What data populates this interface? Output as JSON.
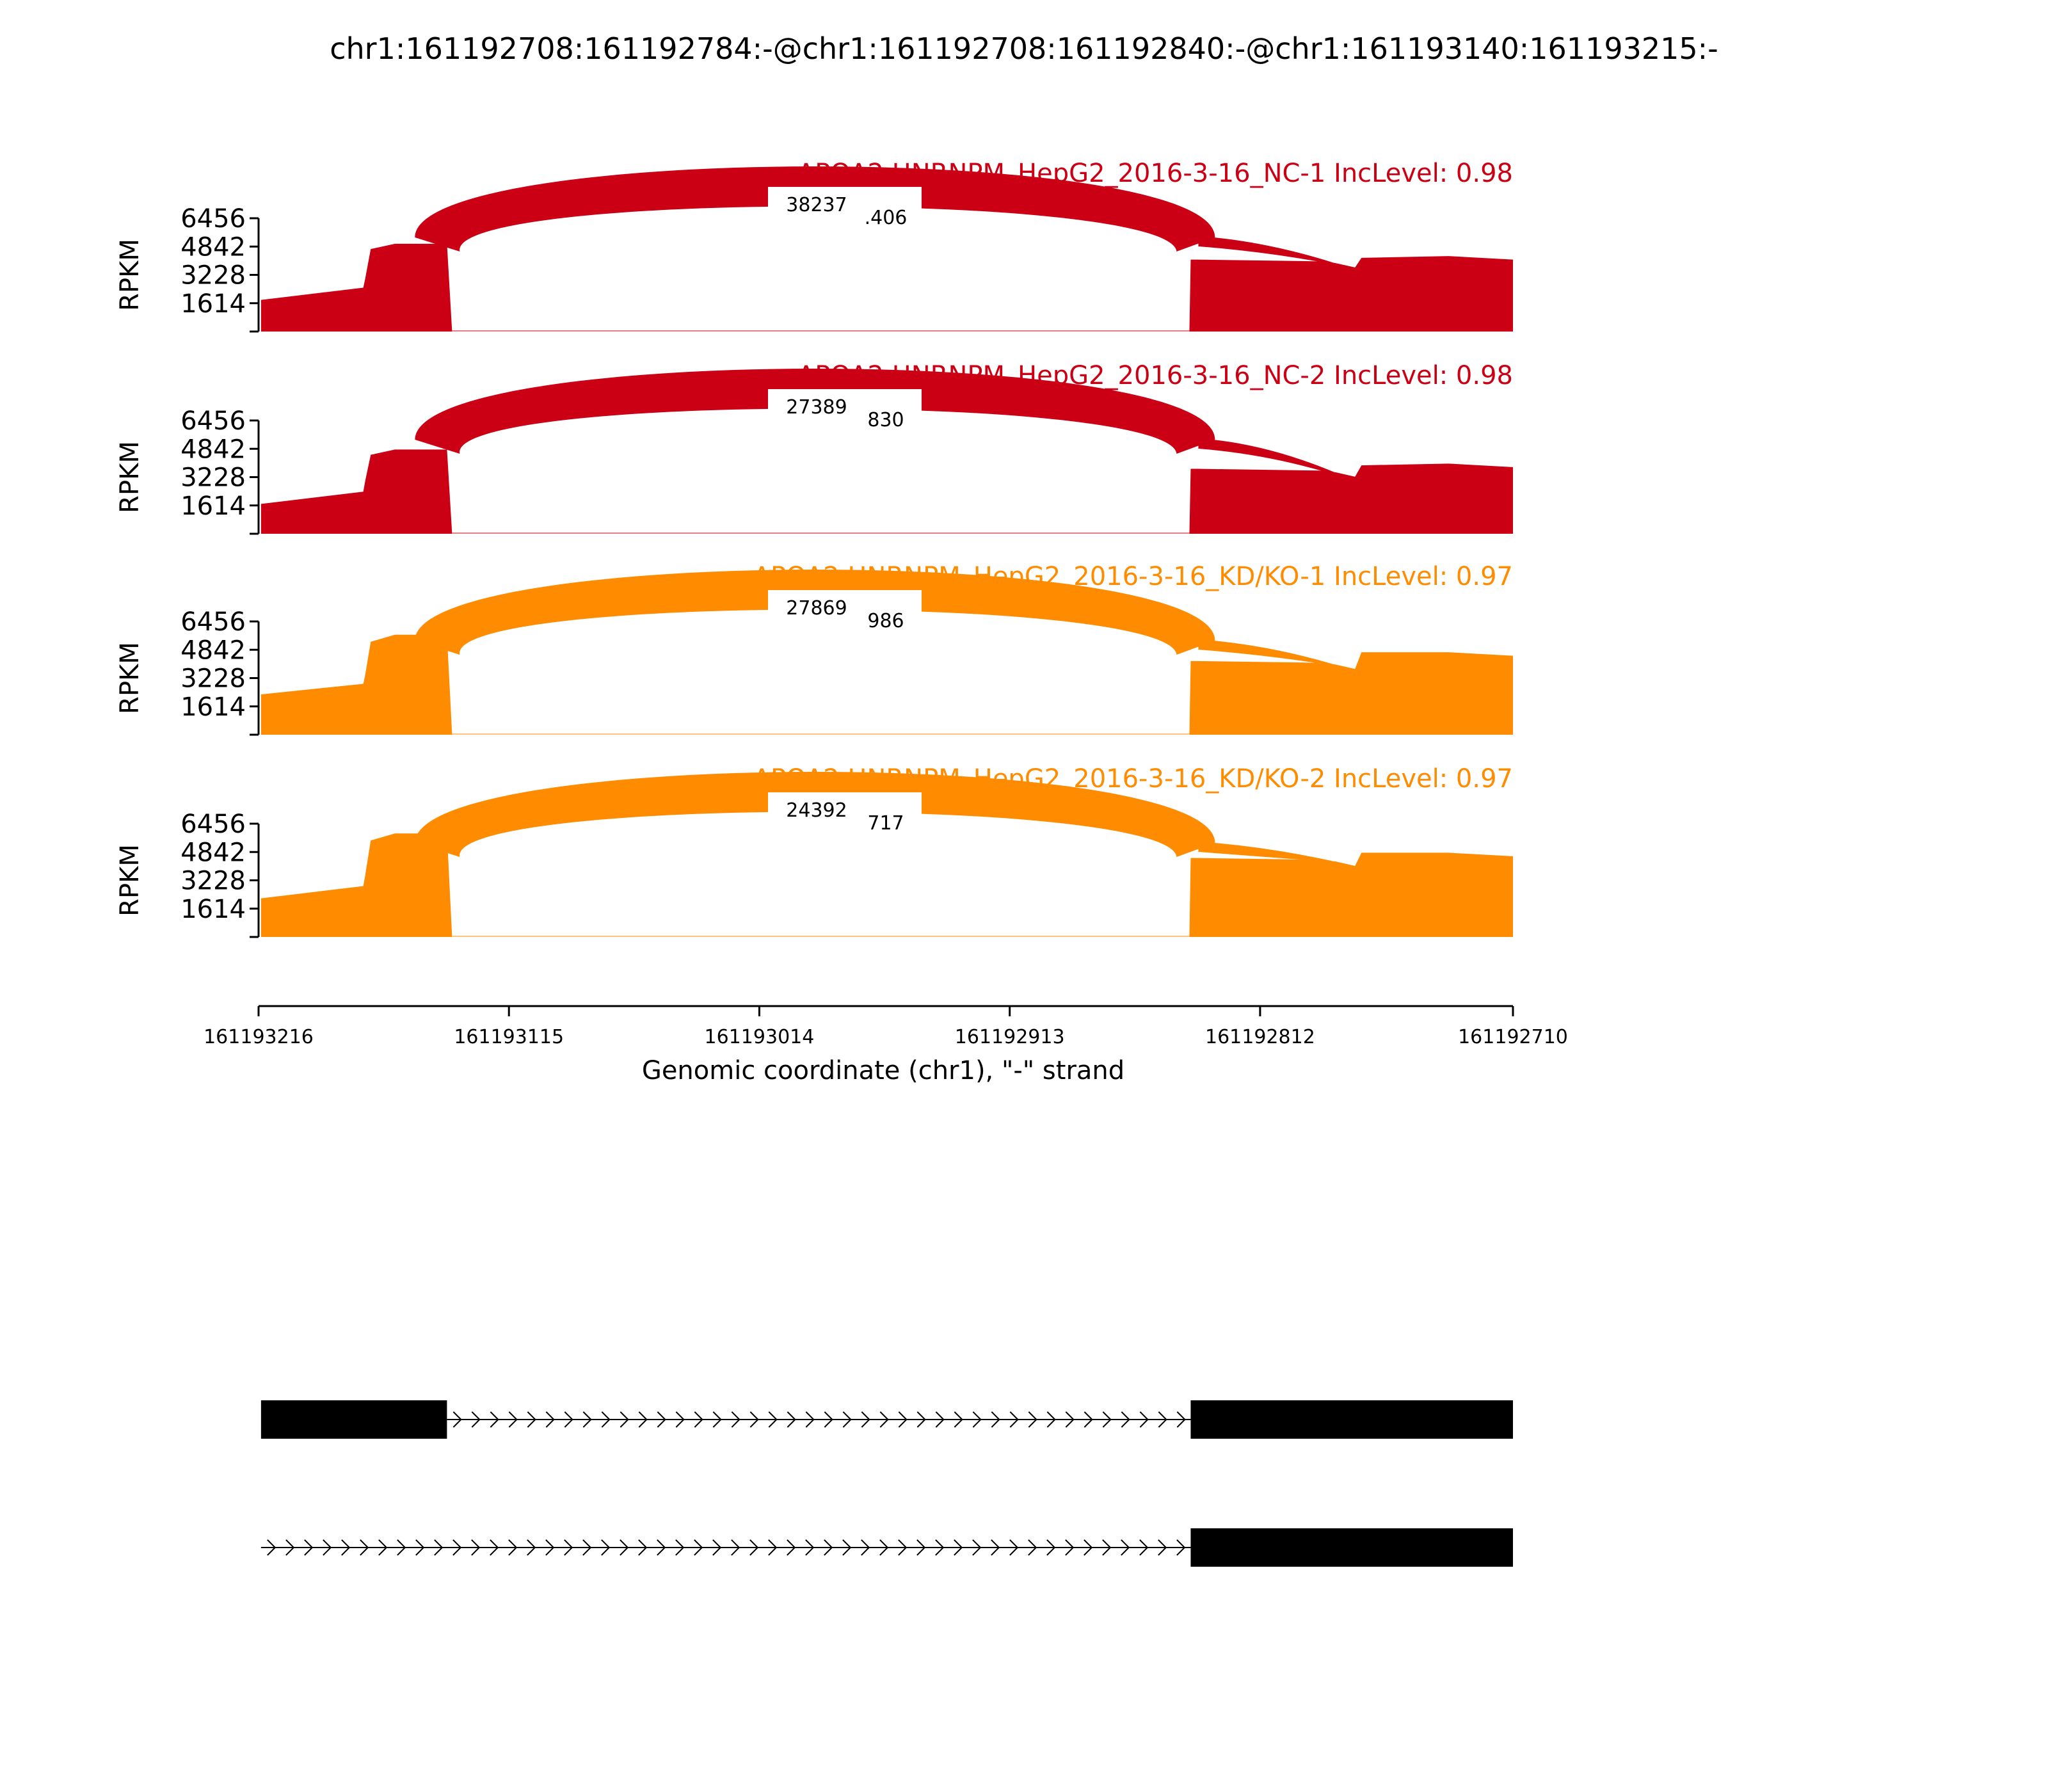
{
  "chart_data": {
    "type": "area",
    "title": "chr1:161192708:161192784:-@chr1:161192708:161192840:-@chr1:161193140:161193215:-",
    "ylabel": "RPKM",
    "xlabel": "Genomic coordinate (chr1), \"-\" strand",
    "x_range": [
      161193216,
      161192710
    ],
    "x_ticks": [
      "161193216",
      "161193115",
      "161193014",
      "161192913",
      "161192812",
      "161192710"
    ],
    "y_range": [
      0,
      6456
    ],
    "y_ticks": [
      "1614",
      "3228",
      "4842",
      "6456"
    ],
    "samples": [
      {
        "name": "APOA2 HNRNPM_HepG2_2016-3-16_NC-1 IncLevel: 0.98",
        "color": "#cc0014",
        "exon1_rpkm": [
          1800,
          2500,
          3000,
          4700,
          5000
        ],
        "exon2_rpkm": [
          4100,
          4000,
          3900,
          4200,
          4300,
          4100
        ],
        "junctions": [
          {
            "label": "38237",
            "from": 161193140,
            "to": 161192840
          },
          {
            "label": ".406",
            "from": 161192840,
            "to": 161192784
          }
        ]
      },
      {
        "name": "APOA2 HNRNPM_HepG2_2016-3-16_NC-2 IncLevel: 0.98",
        "color": "#cc0014",
        "exon1_rpkm": [
          1700,
          2400,
          3000,
          4500,
          4800
        ],
        "exon2_rpkm": [
          3700,
          3600,
          3500,
          3900,
          4000,
          3800
        ],
        "junctions": [
          {
            "label": "27389",
            "from": 161193140,
            "to": 161192840
          },
          {
            "label": "830",
            "from": 161192840,
            "to": 161192784
          }
        ]
      },
      {
        "name": "APOA2 HNRNPM_HepG2_2016-3-16_KD/KO-1 IncLevel: 0.97",
        "color": "#ff8c00",
        "exon1_rpkm": [
          2300,
          2900,
          3400,
          5300,
          5700
        ],
        "exon2_rpkm": [
          4200,
          4100,
          4000,
          4700,
          4700,
          4500
        ],
        "junctions": [
          {
            "label": "27869",
            "from": 161193140,
            "to": 161192840
          },
          {
            "label": "986",
            "from": 161192840,
            "to": 161192784
          }
        ]
      },
      {
        "name": "APOA2 HNRNPM_HepG2_2016-3-16_KD/KO-2 IncLevel: 0.97",
        "color": "#ff8c00",
        "exon1_rpkm": [
          2200,
          2900,
          3500,
          5500,
          5900
        ],
        "exon2_rpkm": [
          4500,
          4400,
          4300,
          4800,
          4800,
          4600
        ],
        "junctions": [
          {
            "label": "24392",
            "from": 161193140,
            "to": 161192840
          },
          {
            "label": "717",
            "from": 161192840,
            "to": 161192784
          }
        ]
      }
    ],
    "exon_coords": {
      "exon1": [
        161193215,
        161193140
      ],
      "exon2": [
        161192840,
        161192710
      ]
    }
  }
}
